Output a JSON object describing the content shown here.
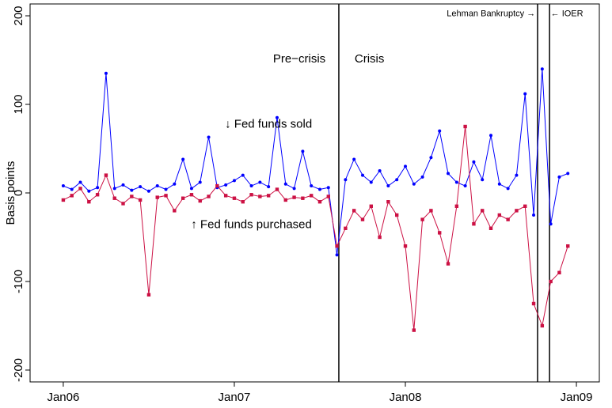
{
  "chart_data": {
    "type": "scatter-line",
    "y_label": "Basis points",
    "x": [
      2006.0,
      2006.05,
      2006.1,
      2006.15,
      2006.2,
      2006.25,
      2006.3,
      2006.35,
      2006.4,
      2006.45,
      2006.5,
      2006.55,
      2006.6,
      2006.65,
      2006.7,
      2006.75,
      2006.8,
      2006.85,
      2006.9,
      2006.95,
      2007.0,
      2007.05,
      2007.1,
      2007.15,
      2007.2,
      2007.25,
      2007.3,
      2007.35,
      2007.4,
      2007.45,
      2007.5,
      2007.55,
      2007.6,
      2007.65,
      2007.7,
      2007.75,
      2007.8,
      2007.85,
      2007.9,
      2007.95,
      2008.0,
      2008.05,
      2008.1,
      2008.15,
      2008.2,
      2008.25,
      2008.3,
      2008.35,
      2008.4,
      2008.45,
      2008.5,
      2008.55,
      2008.6,
      2008.65,
      2008.7,
      2008.75,
      2008.8,
      2008.85,
      2008.9,
      2008.95
    ],
    "series": [
      {
        "name": "Fed funds sold",
        "color": "#0000ff",
        "marker": "circle",
        "values": [
          8,
          4,
          12,
          2,
          6,
          135,
          5,
          9,
          3,
          7,
          2,
          8,
          4,
          10,
          38,
          5,
          12,
          63,
          6,
          9,
          14,
          20,
          8,
          12,
          7,
          85,
          10,
          5,
          47,
          8,
          4,
          6,
          -70,
          15,
          38,
          20,
          12,
          25,
          8,
          15,
          30,
          10,
          18,
          40,
          70,
          22,
          12,
          8,
          35,
          15,
          65,
          10,
          5,
          20,
          112,
          -25,
          140,
          -35,
          18,
          22
        ]
      },
      {
        "name": "Fed funds purchased",
        "color": "#cc1144",
        "marker": "square",
        "values": [
          -8,
          -3,
          5,
          -10,
          -2,
          20,
          -6,
          -12,
          -4,
          -8,
          -115,
          -5,
          -3,
          -20,
          -6,
          -2,
          -9,
          -4,
          8,
          -3,
          -6,
          -10,
          -2,
          -4,
          -3,
          4,
          -8,
          -5,
          -6,
          -3,
          -10,
          -4,
          -60,
          -40,
          -20,
          -30,
          -15,
          -50,
          -10,
          -25,
          -60,
          -155,
          -30,
          -20,
          -45,
          -80,
          -15,
          75,
          -35,
          -20,
          -40,
          -25,
          -30,
          -20,
          -15,
          -125,
          -150,
          -100,
          -90,
          -60
        ]
      }
    ],
    "xlim": [
      2005.806,
      2009.134
    ],
    "xticks": [
      {
        "value": 2006,
        "label": "Jan06"
      },
      {
        "value": 2007,
        "label": "Jan07"
      },
      {
        "value": 2008,
        "label": "Jan08"
      },
      {
        "value": 2009,
        "label": "Jan09"
      }
    ],
    "ylim": [
      -213.4,
      213.4
    ],
    "yticks": [
      -200,
      -100,
      0,
      100,
      200
    ],
    "vlines": [
      2007.611,
      2008.773,
      2008.843
    ],
    "annotations": [
      {
        "text": "Pre−crisis",
        "x": 2007.38,
        "y": 151,
        "anchor": "middle",
        "size": "large"
      },
      {
        "text": "Crisis",
        "x": 2007.79,
        "y": 151,
        "anchor": "middle",
        "size": "large"
      },
      {
        "text": "↓ Fed funds sold",
        "x": 2007.2,
        "y": 77,
        "anchor": "middle",
        "size": "large"
      },
      {
        "text": "↑ Fed funds purchased",
        "x": 2007.1,
        "y": -36,
        "anchor": "middle",
        "size": "large"
      },
      {
        "text": "Lehman Bankruptcy →",
        "x": 2008.76,
        "y": 202,
        "anchor": "end",
        "size": "small"
      },
      {
        "text": "← IOER",
        "x": 2008.85,
        "y": 202,
        "anchor": "start",
        "size": "small"
      }
    ]
  }
}
